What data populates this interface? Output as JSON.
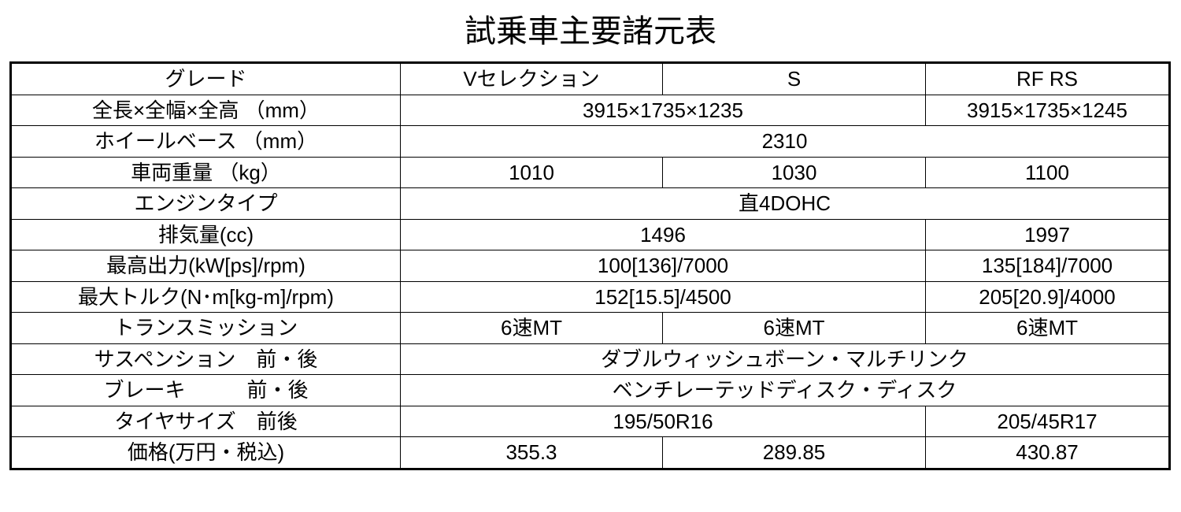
{
  "title": "試乗車主要諸元表",
  "rows": [
    {
      "label": "グレード",
      "cells": [
        {
          "text": "Vセレクション",
          "span": 1
        },
        {
          "text": "S",
          "span": 1
        },
        {
          "text": "RF RS",
          "span": 1
        }
      ]
    },
    {
      "label": "全長×全幅×全高 （mm）",
      "cells": [
        {
          "text": "3915×1735×1235",
          "span": 2
        },
        {
          "text": "3915×1735×1245",
          "span": 1
        }
      ]
    },
    {
      "label": "ホイールベース （mm）",
      "cells": [
        {
          "text": "2310",
          "span": 3
        }
      ]
    },
    {
      "label": "車両重量 （kg）",
      "cells": [
        {
          "text": "1010",
          "span": 1
        },
        {
          "text": "1030",
          "span": 1
        },
        {
          "text": "1100",
          "span": 1
        }
      ]
    },
    {
      "label": "エンジンタイプ",
      "cells": [
        {
          "text": "直4DOHC",
          "span": 3
        }
      ]
    },
    {
      "label": "排気量(cc)",
      "cells": [
        {
          "text": "1496",
          "span": 2
        },
        {
          "text": "1997",
          "span": 1
        }
      ]
    },
    {
      "label": "最高出力(kW[ps]/rpm)",
      "cells": [
        {
          "text": "100[136]/7000",
          "span": 2
        },
        {
          "text": "135[184]/7000",
          "span": 1
        }
      ]
    },
    {
      "label": "最大トルク(N･m[kg-m]/rpm)",
      "cells": [
        {
          "text": "152[15.5]/4500",
          "span": 2
        },
        {
          "text": "205[20.9]/4000",
          "span": 1
        }
      ]
    },
    {
      "label": "トランスミッション",
      "cells": [
        {
          "text": "6速MT",
          "span": 1
        },
        {
          "text": "6速MT",
          "span": 1
        },
        {
          "text": "6速MT",
          "span": 1
        }
      ]
    },
    {
      "label": "サスペンション　前・後",
      "cells": [
        {
          "text": "ダブルウィッシュボーン・マルチリンク",
          "span": 3
        }
      ]
    },
    {
      "label": "ブレーキ　　　前・後",
      "cells": [
        {
          "text": "ベンチレーテッドディスク・ディスク",
          "span": 3
        }
      ]
    },
    {
      "label": "タイヤサイズ　前後",
      "cells": [
        {
          "text": "195/50R16",
          "span": 2
        },
        {
          "text": "205/45R17",
          "span": 1
        }
      ]
    },
    {
      "label": "価格(万円・税込)",
      "cells": [
        {
          "text": "355.3",
          "span": 1
        },
        {
          "text": "289.85",
          "span": 1
        },
        {
          "text": "430.87",
          "span": 1
        }
      ]
    }
  ]
}
